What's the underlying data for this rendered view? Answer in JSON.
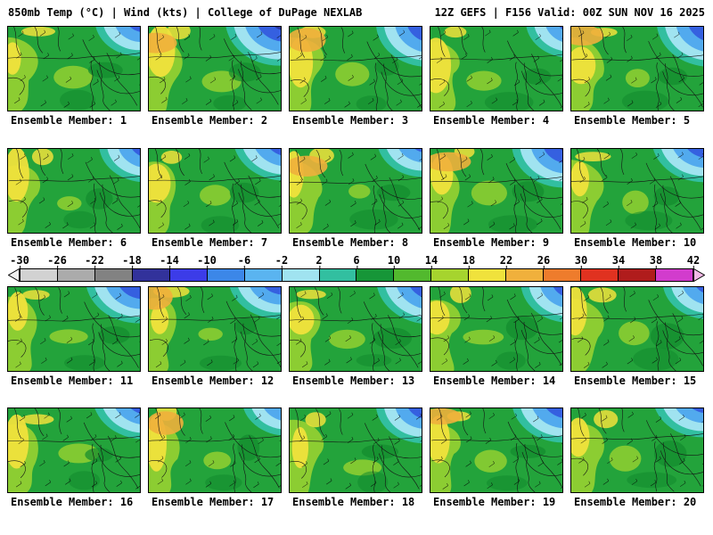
{
  "header": {
    "left": "850mb Temp (°C) | Wind (kts) | College of DuPage NEXLAB",
    "right": "12Z GEFS | F156 Valid: 00Z SUN NOV 16 2025"
  },
  "panels": {
    "rows": [
      [
        {
          "number": 1,
          "label": "Ensemble Member: 1"
        },
        {
          "number": 2,
          "label": "Ensemble Member: 2"
        },
        {
          "number": 3,
          "label": "Ensemble Member: 3"
        },
        {
          "number": 4,
          "label": "Ensemble Member: 4"
        },
        {
          "number": 5,
          "label": "Ensemble Member: 5"
        }
      ],
      [
        {
          "number": 6,
          "label": "Ensemble Member: 6"
        },
        {
          "number": 7,
          "label": "Ensemble Member: 7"
        },
        {
          "number": 8,
          "label": "Ensemble Member: 8"
        },
        {
          "number": 9,
          "label": "Ensemble Member: 9"
        },
        {
          "number": 10,
          "label": "Ensemble Member: 10"
        }
      ],
      [
        {
          "number": 11,
          "label": "Ensemble Member: 11"
        },
        {
          "number": 12,
          "label": "Ensemble Member: 12"
        },
        {
          "number": 13,
          "label": "Ensemble Member: 13"
        },
        {
          "number": 14,
          "label": "Ensemble Member: 14"
        },
        {
          "number": 15,
          "label": "Ensemble Member: 15"
        }
      ],
      [
        {
          "number": 16,
          "label": "Ensemble Member: 16"
        },
        {
          "number": 17,
          "label": "Ensemble Member: 17"
        },
        {
          "number": 18,
          "label": "Ensemble Member: 18"
        },
        {
          "number": 19,
          "label": "Ensemble Member: 19"
        },
        {
          "number": 20,
          "label": "Ensemble Member: 20"
        }
      ]
    ]
  },
  "colorbar": {
    "ticks": [
      -30,
      -26,
      -22,
      -18,
      -14,
      -10,
      -6,
      -2,
      2,
      6,
      10,
      14,
      18,
      22,
      26,
      30,
      34,
      38,
      42
    ],
    "left_arrow_color": "#f0f0f0",
    "right_arrow_color": "#f2b8e6",
    "segments": [
      {
        "from": -30,
        "to": -26,
        "color": "#d2d2d2"
      },
      {
        "from": -26,
        "to": -22,
        "color": "#ababab"
      },
      {
        "from": -22,
        "to": -18,
        "color": "#828282"
      },
      {
        "from": -18,
        "to": -14,
        "color": "#32329b"
      },
      {
        "from": -14,
        "to": -10,
        "color": "#3c3ce8"
      },
      {
        "from": -10,
        "to": -6,
        "color": "#3c87e8"
      },
      {
        "from": -6,
        "to": -2,
        "color": "#5ab4f0"
      },
      {
        "from": -2,
        "to": 2,
        "color": "#a0e3f0"
      },
      {
        "from": 2,
        "to": 6,
        "color": "#32bfa0"
      },
      {
        "from": 6,
        "to": 10,
        "color": "#169638"
      },
      {
        "from": 10,
        "to": 14,
        "color": "#52b92e"
      },
      {
        "from": 14,
        "to": 18,
        "color": "#a6d42e"
      },
      {
        "from": 18,
        "to": 22,
        "color": "#f0e23c"
      },
      {
        "from": 22,
        "to": 26,
        "color": "#f0b03c"
      },
      {
        "from": 26,
        "to": 30,
        "color": "#ee7c2c"
      },
      {
        "from": 30,
        "to": 34,
        "color": "#e03220"
      },
      {
        "from": 34,
        "to": 38,
        "color": "#b01c1c"
      },
      {
        "from": 38,
        "to": 42,
        "color": "#d23ccd"
      }
    ]
  },
  "map_colors": {
    "green": "#23a33b",
    "lightGreen": "#8ccd32",
    "yellow": "#f0e23c",
    "orange": "#f0b03c",
    "darkGreen": "#128a2e",
    "teal": "#32bfa0",
    "paleCyan": "#a0e3f0",
    "lightBlue": "#52aaee",
    "blue": "#3560e0",
    "darkBlue": "#28329b"
  }
}
